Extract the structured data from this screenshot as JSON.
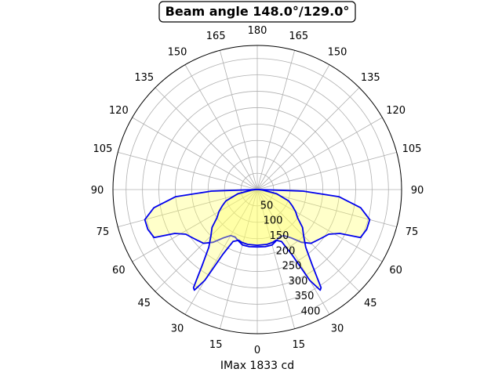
{
  "chart_data": {
    "type": "polar",
    "title": "Beam angle 148.0°/129.0°",
    "xlabel": "IMax 1833 cd",
    "angle_ticks": [
      "180",
      "165",
      "150",
      "135",
      "120",
      "105",
      "90",
      "75",
      "60",
      "45",
      "30",
      "15",
      "0",
      "15",
      "30",
      "45",
      "60",
      "75",
      "90",
      "105",
      "120",
      "135",
      "150",
      "165"
    ],
    "radial_ticks": [
      "50",
      "100",
      "150",
      "200",
      "250",
      "300",
      "350",
      "400"
    ],
    "radial_max": 440,
    "colors": {
      "line": "#0000ee",
      "fill": "#ffff66",
      "grid": "#b0b0b0"
    },
    "series": [
      {
        "points": [
          [
            0,
            175
          ],
          [
            8,
            176
          ],
          [
            15,
            175
          ],
          [
            20,
            167
          ],
          [
            25,
            160
          ],
          [
            30,
            162
          ],
          [
            35,
            180
          ],
          [
            40,
            210
          ],
          [
            45,
            232
          ],
          [
            50,
            240
          ],
          [
            55,
            250
          ],
          [
            58,
            257
          ],
          [
            62,
            285
          ],
          [
            65,
            347
          ],
          [
            70,
            355
          ],
          [
            75,
            355
          ],
          [
            80,
            320
          ],
          [
            85,
            250
          ],
          [
            88,
            140
          ],
          [
            90,
            8
          ]
        ]
      },
      {
        "points": [
          [
            0,
            170
          ],
          [
            10,
            170
          ],
          [
            16,
            168
          ],
          [
            20,
            165
          ],
          [
            25,
            175
          ],
          [
            28,
            225
          ],
          [
            30,
            320
          ],
          [
            32,
            362
          ],
          [
            33,
            357
          ],
          [
            36,
            285
          ],
          [
            40,
            230
          ],
          [
            45,
            200
          ],
          [
            50,
            180
          ],
          [
            55,
            150
          ],
          [
            60,
            135
          ],
          [
            65,
            118
          ],
          [
            70,
            102
          ],
          [
            78,
            60
          ],
          [
            85,
            18
          ],
          [
            90,
            4
          ]
        ]
      }
    ]
  }
}
